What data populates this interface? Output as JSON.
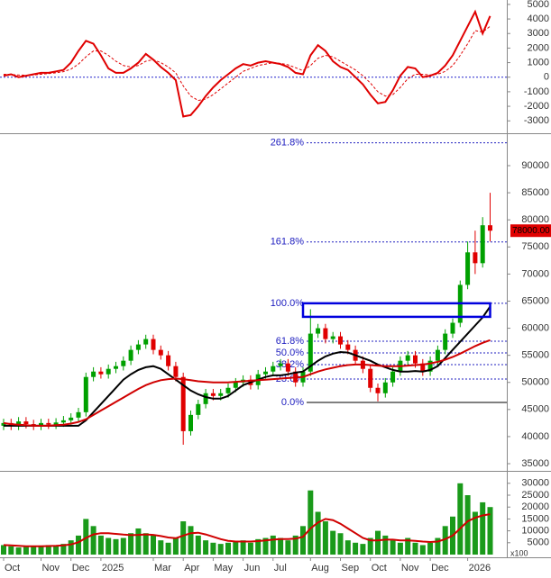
{
  "chart_data": [
    {
      "type": "line",
      "ylim": [
        -3790,
        5180
      ],
      "yticks": [
        -3000,
        -2000,
        -1000,
        0,
        1000,
        2000,
        3000,
        4000,
        5000
      ],
      "zero_color": "#2222cc",
      "series": [
        {
          "color": "#e00000",
          "style": "solid",
          "values": [
            100,
            200,
            0,
            100,
            200,
            300,
            300,
            400,
            500,
            1000,
            1800,
            2500,
            2300,
            1500,
            600,
            300,
            300,
            600,
            1000,
            1600,
            1200,
            700,
            300,
            -200,
            -2700,
            -2600,
            -2000,
            -1300,
            -700,
            -200,
            200,
            600,
            900,
            800,
            1000,
            1100,
            1000,
            900,
            700,
            300,
            200,
            1500,
            2200,
            1800,
            1100,
            700,
            500,
            0,
            -500,
            -1200,
            -1800,
            -1700,
            -900,
            100,
            700,
            600,
            0,
            100,
            300,
            800,
            1500,
            2500,
            3500,
            4500,
            3000,
            4200
          ]
        },
        {
          "color": "#e00000",
          "style": "dashed",
          "values": [
            200,
            180,
            150,
            130,
            150,
            200,
            250,
            300,
            380,
            550,
            900,
            1400,
            1800,
            1800,
            1500,
            1100,
            800,
            700,
            800,
            1100,
            1200,
            1000,
            700,
            300,
            -600,
            -1300,
            -1600,
            -1500,
            -1200,
            -800,
            -400,
            0,
            400,
            600,
            800,
            900,
            1000,
            950,
            850,
            650,
            450,
            800,
            1300,
            1500,
            1400,
            1100,
            800,
            500,
            100,
            -400,
            -1000,
            -1300,
            -1200,
            -700,
            -100,
            200,
            200,
            150,
            200,
            400,
            800,
            1500,
            2300,
            3200,
            3100,
            3500
          ]
        }
      ]
    },
    {
      "type": "candlestick",
      "ylim": [
        33840,
        95650
      ],
      "yticks": [
        35000,
        40000,
        45000,
        50000,
        55000,
        60000,
        65000,
        70000,
        75000,
        80000,
        85000,
        90000
      ],
      "up_color": "#00a000",
      "down_color": "#e00000",
      "open": [
        42000,
        42500,
        42000,
        42800,
        42300,
        42000,
        42500,
        42200,
        42600,
        43000,
        43500,
        44500,
        51000,
        52000,
        51500,
        52500,
        53000,
        54000,
        56000,
        57000,
        58000,
        56000,
        55000,
        53000,
        51000,
        41000,
        44000,
        46000,
        48000,
        47500,
        48000,
        49000,
        50000,
        50500,
        49500,
        51500,
        52000,
        53000,
        53500,
        52000,
        50000,
        52000,
        59000,
        60000,
        58000,
        58500,
        57000,
        56000,
        54000,
        52500,
        49000,
        48000,
        50000,
        52000,
        54000,
        55000,
        53500,
        52000,
        54000,
        56000,
        59000,
        61000,
        68000,
        74000,
        72000,
        79000
      ],
      "high": [
        43300,
        43300,
        43600,
        43600,
        43100,
        43300,
        43300,
        43400,
        43800,
        44300,
        45300,
        51800,
        52800,
        52800,
        53300,
        53800,
        54800,
        56800,
        57800,
        58800,
        58800,
        56800,
        55800,
        53800,
        51800,
        44800,
        46800,
        48800,
        48800,
        48800,
        49800,
        50800,
        51300,
        51300,
        52300,
        52800,
        53800,
        54300,
        54300,
        52800,
        52800,
        63500,
        60800,
        60800,
        59300,
        59300,
        57800,
        56800,
        54800,
        53300,
        49800,
        50800,
        52800,
        54800,
        55800,
        55800,
        54300,
        54800,
        56800,
        59800,
        61800,
        68800,
        76000,
        78000,
        80500,
        85000
      ],
      "low": [
        41200,
        41200,
        41200,
        41500,
        41200,
        41200,
        41400,
        41400,
        41800,
        42200,
        42700,
        43700,
        50200,
        50700,
        50700,
        51700,
        52200,
        53200,
        55200,
        56200,
        55200,
        54200,
        52200,
        50200,
        38500,
        40200,
        43200,
        45200,
        46700,
        46700,
        47200,
        48200,
        49200,
        48700,
        48700,
        50700,
        51200,
        52200,
        51200,
        49200,
        49200,
        51200,
        58200,
        57200,
        57200,
        56200,
        55200,
        53200,
        51700,
        48200,
        46500,
        47200,
        49200,
        51200,
        53200,
        52700,
        51200,
        51200,
        53200,
        55200,
        58200,
        60200,
        67200,
        70000,
        71200,
        76000
      ],
      "close": [
        42500,
        42000,
        42800,
        42300,
        42000,
        42500,
        42200,
        42600,
        43000,
        43500,
        44500,
        51000,
        52000,
        51500,
        52500,
        53000,
        54000,
        56000,
        57000,
        58000,
        56000,
        55000,
        53000,
        51000,
        41000,
        44000,
        46000,
        48000,
        47500,
        48000,
        49000,
        50000,
        50500,
        49500,
        51500,
        52000,
        53000,
        53500,
        52000,
        50000,
        52000,
        59000,
        60000,
        58000,
        58500,
        57000,
        56000,
        54000,
        52500,
        49000,
        48000,
        50000,
        52000,
        54000,
        55000,
        53500,
        52000,
        54000,
        56000,
        59000,
        61000,
        68000,
        74000,
        72000,
        79000,
        78000
      ],
      "series": [
        {
          "color": "#000000",
          "values": [
            42000,
            42000,
            42000,
            42000,
            42000,
            42000,
            42000,
            42000,
            42000,
            42000,
            42000,
            43000,
            44500,
            46000,
            47500,
            49000,
            50500,
            51500,
            52300,
            52800,
            53000,
            52500,
            51500,
            50500,
            49500,
            48500,
            47800,
            47300,
            47000,
            47000,
            47500,
            48500,
            49500,
            50000,
            50500,
            51000,
            51300,
            51300,
            51500,
            51800,
            52000,
            53000,
            54000,
            54800,
            55300,
            55600,
            55500,
            55000,
            54500,
            54000,
            53300,
            52800,
            52300,
            52000,
            52000,
            52100,
            52000,
            52300,
            53000,
            54500,
            56000,
            57500,
            59000,
            60500,
            62000,
            64000
          ]
        },
        {
          "color": "#d00000",
          "values": [
            42500,
            42300,
            42200,
            42100,
            42000,
            42000,
            42000,
            42100,
            42200,
            42400,
            42700,
            43200,
            44000,
            44800,
            45600,
            46400,
            47200,
            48000,
            48800,
            49500,
            50000,
            50400,
            50600,
            50700,
            50600,
            50400,
            50200,
            50100,
            50000,
            50000,
            50000,
            50100,
            50200,
            50300,
            50400,
            50500,
            50600,
            50700,
            50800,
            50900,
            51000,
            51500,
            52000,
            52400,
            52700,
            53000,
            53200,
            53300,
            53300,
            53200,
            53100,
            53000,
            53000,
            53000,
            53100,
            53200,
            53300,
            53500,
            53800,
            54200,
            54700,
            55300,
            56000,
            56700,
            57300,
            57800
          ]
        }
      ],
      "levels": [
        {
          "value": 94210,
          "label": "261.8%"
        },
        {
          "value": 75910,
          "label": "161.8%"
        },
        {
          "value": 64600,
          "label": "100.0%"
        },
        {
          "value": 57610,
          "label": "61.8%"
        },
        {
          "value": 55450,
          "label": "50.0%"
        },
        {
          "value": 53290,
          "label": "38.2%"
        },
        {
          "value": 50620,
          "label": "23.6%"
        },
        {
          "value": 46300,
          "label": "0.0%"
        }
      ],
      "level_color": "#2020c0",
      "zone": [
        62100,
        64600
      ],
      "zone_color": "#0000dd",
      "last_label": {
        "value": 78000,
        "label": "78000.00"
      }
    },
    {
      "type": "bar",
      "ylim": [
        0,
        34100
      ],
      "yticks": [
        5000,
        10000,
        15000,
        20000,
        25000,
        30000
      ],
      "color": "#1a9a1a",
      "unit_label": "x100",
      "values": [
        4000,
        3500,
        3000,
        3200,
        3500,
        3800,
        4000,
        3500,
        4500,
        6000,
        8000,
        15000,
        12000,
        8000,
        7000,
        6500,
        7000,
        9000,
        11000,
        9000,
        8000,
        6000,
        5000,
        7000,
        14000,
        12000,
        8000,
        6000,
        5000,
        4500,
        5000,
        5500,
        6000,
        5000,
        6500,
        7000,
        8000,
        7000,
        6000,
        8000,
        12000,
        27000,
        18000,
        14000,
        10000,
        9000,
        6000,
        5000,
        4500,
        7000,
        10000,
        8000,
        6000,
        5000,
        7000,
        5000,
        4000,
        5000,
        7000,
        12000,
        16000,
        30000,
        25000,
        18000,
        22000,
        20000
      ],
      "series": [
        {
          "color": "#d00000",
          "values": [
            4000,
            3900,
            3700,
            3500,
            3500,
            3500,
            3600,
            3700,
            3900,
            4300,
            5200,
            7000,
            8500,
            9000,
            9000,
            8700,
            8400,
            8200,
            8300,
            8500,
            8300,
            7800,
            7200,
            6900,
            8000,
            9000,
            9200,
            8500,
            7500,
            6500,
            5800,
            5500,
            5500,
            5500,
            5700,
            6000,
            6300,
            6500,
            6500,
            6700,
            7500,
            11000,
            13500,
            15000,
            14500,
            13000,
            11000,
            9000,
            7000,
            6000,
            6000,
            6300,
            6300,
            6000,
            6000,
            5800,
            5500,
            5300,
            5500,
            6500,
            8000,
            11000,
            14000,
            15500,
            16500,
            17000
          ]
        }
      ],
      "categories": [
        "Oct",
        null,
        null,
        null,
        null,
        "Nov",
        null,
        null,
        null,
        "Dec",
        null,
        null,
        null,
        "2025",
        null,
        null,
        null,
        null,
        null,
        null,
        "Mar",
        null,
        null,
        null,
        "Apr",
        null,
        null,
        null,
        "May",
        null,
        null,
        null,
        "Jun",
        null,
        null,
        null,
        "Jul",
        null,
        null,
        null,
        null,
        "Aug",
        null,
        null,
        null,
        "Sep",
        null,
        null,
        null,
        "Oct",
        null,
        null,
        null,
        "Nov",
        null,
        null,
        null,
        "Dec",
        null,
        null,
        null,
        null,
        "2026",
        null,
        null,
        null
      ]
    }
  ]
}
